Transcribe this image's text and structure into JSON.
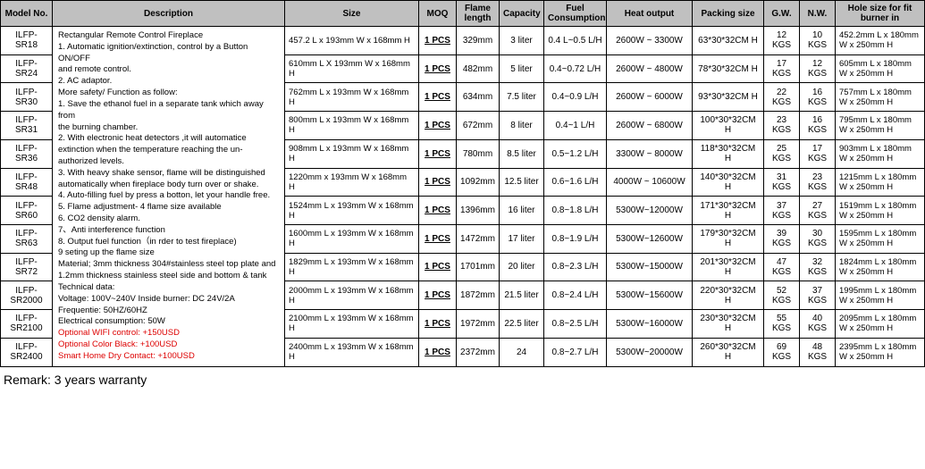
{
  "headers": {
    "model": "Model No.",
    "desc": "Description",
    "size": "Size",
    "moq": "MOQ",
    "flame": "Flame length",
    "capacity": "Capacity",
    "fuel": "Fuel Consumption",
    "heat": "Heat output",
    "packing": "Packing size",
    "gw": "G.W.",
    "nw": "N.W.",
    "hole": "Hole size for fit burner in"
  },
  "description": {
    "title": "Rectangular Remote Control Fireplace",
    "lines": [
      "1. Automatic ignition/extinction, control by a Button ON/OFF",
      "and remote control.",
      "2. AC adaptor.",
      "More safety/ Function as follow:",
      "1. Save the ethanol fuel in a separate tank which away from",
      "the burning chamber.",
      "2. With electronic heat detectors ,it will automatice extinction when the temperature reaching the un-authorized levels.",
      "3. With heavy shake sensor, flame will be distinguished automatically when fireplace body turn over or shake.",
      "4. Auto-filling fuel by press a botton, let your handle free.",
      "5. Flame adjustment- 4 flame size available",
      "6. CO2 density alarm.",
      "7、Anti interference function",
      "8. Output fuel function（in rder to test fireplace)",
      "9 seting up the flame size",
      "Material; 3mm thickness 304#stainless steel top plate and 1.2mm thickness stainless steel side and bottom & tank",
      "Technical data:",
      "Voltage: 100V~240V  Inside burner: DC 24V/2A",
      "Frequentie: 50HZ/60HZ",
      "Electrical consumption: 50W"
    ],
    "options": [
      "Optional WIFI control: +150USD",
      "Optional Color Black: +100USD",
      "Smart Home Dry Contact: +100USD"
    ]
  },
  "rows": [
    {
      "model": "ILFP-SR18",
      "size": "457.2 L x 193mm W x 168mm H",
      "moq": "1 PCS",
      "flame": "329mm",
      "cap": "3 liter",
      "fuel": "0.4 L~0.5 L/H",
      "heat": "2600W ~ 3300W",
      "pack": "63*30*32CM H",
      "gw": "12 KGS",
      "nw": "10 KGS",
      "hole": "452.2mm L x 180mm W x 250mm H"
    },
    {
      "model": "ILFP-SR24",
      "size": "610mm L X 193mm W x 168mm H",
      "moq": "1 PCS",
      "flame": "482mm",
      "cap": "5 liter",
      "fuel": "0.4~0.72 L/H",
      "heat": "2600W ~ 4800W",
      "pack": "78*30*32CM H",
      "gw": "17 KGS",
      "nw": "12 KGS",
      "hole": "605mm L x 180mm W x 250mm H"
    },
    {
      "model": "ILFP-SR30",
      "size": "762mm L x 193mm W x 168mm H",
      "moq": "1 PCS",
      "flame": "634mm",
      "cap": "7.5 liter",
      "fuel": "0.4~0.9 L/H",
      "heat": "2600W ~ 6000W",
      "pack": "93*30*32CM H",
      "gw": "22 KGS",
      "nw": "16 KGS",
      "hole": "757mm L x 180mm W x 250mm H"
    },
    {
      "model": "ILFP-SR31",
      "size": "800mm L x 193mm W x 168mm H",
      "moq": "1 PCS",
      "flame": "672mm",
      "cap": "8 liter",
      "fuel": "0.4~1 L/H",
      "heat": "2600W ~ 6800W",
      "pack": "100*30*32CM H",
      "gw": "23 KGS",
      "nw": "16 KGS",
      "hole": "795mm L x 180mm W x 250mm H"
    },
    {
      "model": "ILFP-SR36",
      "size": "908mm L x 193mm W x 168mm H",
      "moq": "1 PCS",
      "flame": "780mm",
      "cap": "8.5 liter",
      "fuel": "0.5~1.2 L/H",
      "heat": "3300W ~ 8000W",
      "pack": "118*30*32CM H",
      "gw": "25 KGS",
      "nw": "17 KGS",
      "hole": "903mm L x 180mm W x 250mm H"
    },
    {
      "model": "ILFP-SR48",
      "size": "1220mm x 193mm W x 168mm H",
      "moq": "1 PCS",
      "flame": "1092mm",
      "cap": "12.5 liter",
      "fuel": "0.6~1.6 L/H",
      "heat": "4000W ~ 10600W",
      "pack": "140*30*32CM H",
      "gw": "31 KGS",
      "nw": "23 KGS",
      "hole": "1215mm L x 180mm W x 250mm H"
    },
    {
      "model": "ILFP-SR60",
      "size": "1524mm L x 193mm W x 168mm H",
      "moq": "1 PCS",
      "flame": "1396mm",
      "cap": "16 liter",
      "fuel": "0.8~1.8 L/H",
      "heat": "5300W~12000W",
      "pack": "171*30*32CM H",
      "gw": "37 KGS",
      "nw": "27 KGS",
      "hole": "1519mm L x 180mm W x 250mm H"
    },
    {
      "model": "ILFP-SR63",
      "size": "1600mm L x 193mm W x 168mm H",
      "moq": "1 PCS",
      "flame": "1472mm",
      "cap": "17 liter",
      "fuel": "0.8~1.9 L/H",
      "heat": "5300W~12600W",
      "pack": "179*30*32CM H",
      "gw": "39 KGS",
      "nw": "30 KGS",
      "hole": "1595mm L x 180mm W x 250mm H"
    },
    {
      "model": "ILFP-SR72",
      "size": "1829mm L x 193mm W x 168mm H",
      "moq": "1 PCS",
      "flame": "1701mm",
      "cap": "20 liter",
      "fuel": "0.8~2.3 L/H",
      "heat": "5300W~15000W",
      "pack": "201*30*32CM H",
      "gw": "47 KGS",
      "nw": "32 KGS",
      "hole": "1824mm L x 180mm W x 250mm H"
    },
    {
      "model": "ILFP-SR2000",
      "size": "2000mm L x 193mm W x 168mm H",
      "moq": "1 PCS",
      "flame": "1872mm",
      "cap": "21.5 liter",
      "fuel": "0.8~2.4 L/H",
      "heat": "5300W~15600W",
      "pack": "220*30*32CM H",
      "gw": "52 KGS",
      "nw": "37 KGS",
      "hole": "1995mm L x 180mm W x 250mm H"
    },
    {
      "model": "ILFP-SR2100",
      "size": "2100mm L x 193mm W x 168mm H",
      "moq": "1 PCS",
      "flame": "1972mm",
      "cap": "22.5 liter",
      "fuel": "0.8~2.5 L/H",
      "heat": "5300W~16000W",
      "pack": "230*30*32CM H",
      "gw": "55 KGS",
      "nw": "40 KGS",
      "hole": "2095mm L x 180mm W x 250mm H"
    },
    {
      "model": "ILFP-SR2400",
      "size": "2400mm L x 193mm W x 168mm H",
      "moq": "1 PCS",
      "flame": "2372mm",
      "cap": "24",
      "fuel": "0.8~2.7 L/H",
      "heat": "5300W~20000W",
      "pack": "260*30*32CM H",
      "gw": "69 KGS",
      "nw": "48 KGS",
      "hole": "2395mm L x 180mm W x 250mm H"
    }
  ],
  "remark": "Remark: 3 years warranty"
}
